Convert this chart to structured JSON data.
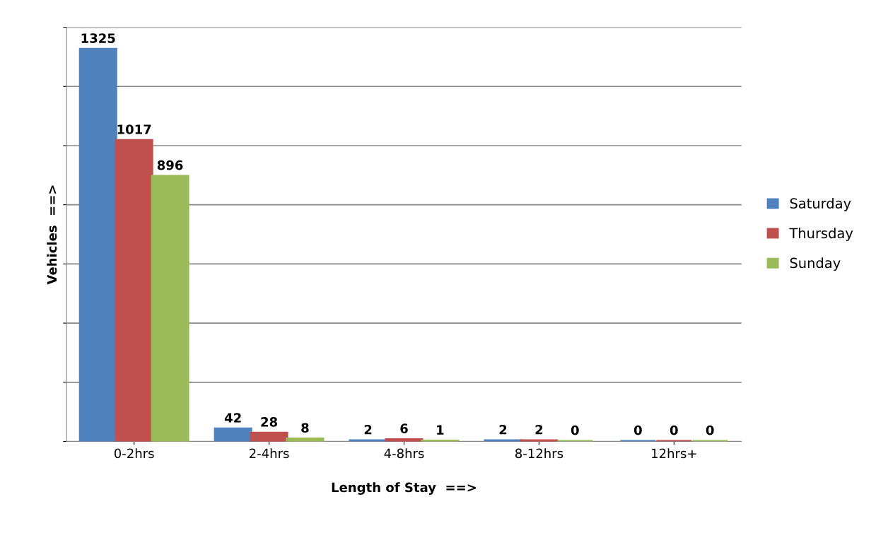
{
  "chart_data": {
    "type": "bar",
    "xlabel": "Length of Stay  ==>",
    "ylabel": "Vehicles  ==>",
    "categories": [
      "0-2hrs",
      "2-4hrs",
      "4-8hrs",
      "8-12hrs",
      "12hrs+"
    ],
    "series": [
      {
        "name": "Saturday",
        "color": "#4f81bd",
        "values": [
          1325,
          42,
          2,
          2,
          0
        ]
      },
      {
        "name": "Thursday",
        "color": "#c0504d",
        "values": [
          1017,
          28,
          6,
          2,
          0
        ]
      },
      {
        "name": "Sunday",
        "color": "#9bbb59",
        "values": [
          896,
          8,
          1,
          0,
          0
        ]
      }
    ],
    "ylim": [
      0,
      1400
    ],
    "yticks": [
      {
        "value": 0,
        "label": null
      },
      {
        "value": 200,
        "label": null
      },
      {
        "value": 400,
        "label": null
      },
      {
        "value": 600,
        "label": null
      },
      {
        "value": 800,
        "label": null
      },
      {
        "value": 1000,
        "label": null
      },
      {
        "value": 1200,
        "label": null
      },
      {
        "value": 1400,
        "label": null
      }
    ],
    "tick_labels": "x",
    "grid": "y",
    "legend": "right",
    "data_labels": true
  }
}
